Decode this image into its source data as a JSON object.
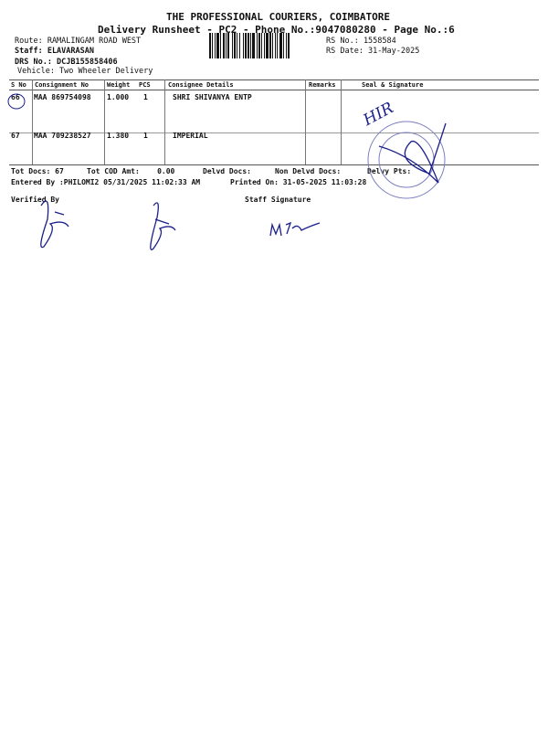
{
  "header": {
    "company": "THE PROFESSIONAL COURIERS, COIMBATORE",
    "subtitle": "Delivery Runsheet - PC2 - Phone No.:9047080280 - Page No.:6",
    "route": "Route: RAMALINGAM ROAD WEST",
    "staff": "Staff: ELAVARASAN",
    "drs_no": "DRS No.: DCJB155858406",
    "vehicle": "Vehicle: Two Wheeler Delivery",
    "rs_no": "RS No.: 1558584",
    "rs_date": "RS Date: 31-May-2025"
  },
  "table": {
    "columns": [
      "S No",
      "Consignment No",
      "Weight",
      "PCS",
      "Consignee Details",
      "Remarks",
      "Seal & Signature"
    ],
    "rows": [
      {
        "sno": "66",
        "consignment": "MAA 869754098",
        "weight": "1.000",
        "pcs": "1",
        "consignee": "SHRI SHIVANYA ENTP",
        "remarks": ""
      },
      {
        "sno": "67",
        "consignment": "MAA 709238527",
        "weight": "1.380",
        "pcs": "1",
        "consignee": "IMPERIAL",
        "remarks": ""
      }
    ]
  },
  "totals": {
    "tot_docs": "Tot Docs:  67",
    "tot_cod": "Tot COD Amt:    0.00",
    "delvd_docs": "Delvd Docs:",
    "non_delvd_docs": "Non Delvd Docs:",
    "delvy_pts": "Delvy Pts:"
  },
  "footer": {
    "entered_by": "Entered By :PHILOMI2 05/31/2025 11:02:33 AM",
    "printed_on": "Printed On: 31-05-2025 11:03:28",
    "verified_by": "Verified By",
    "staff_signature": "Staff Signature"
  },
  "handwriting": {
    "annotation": "HIR"
  },
  "colors": {
    "ink": "#1a1f8a",
    "stamp": "#7b7fc0"
  }
}
